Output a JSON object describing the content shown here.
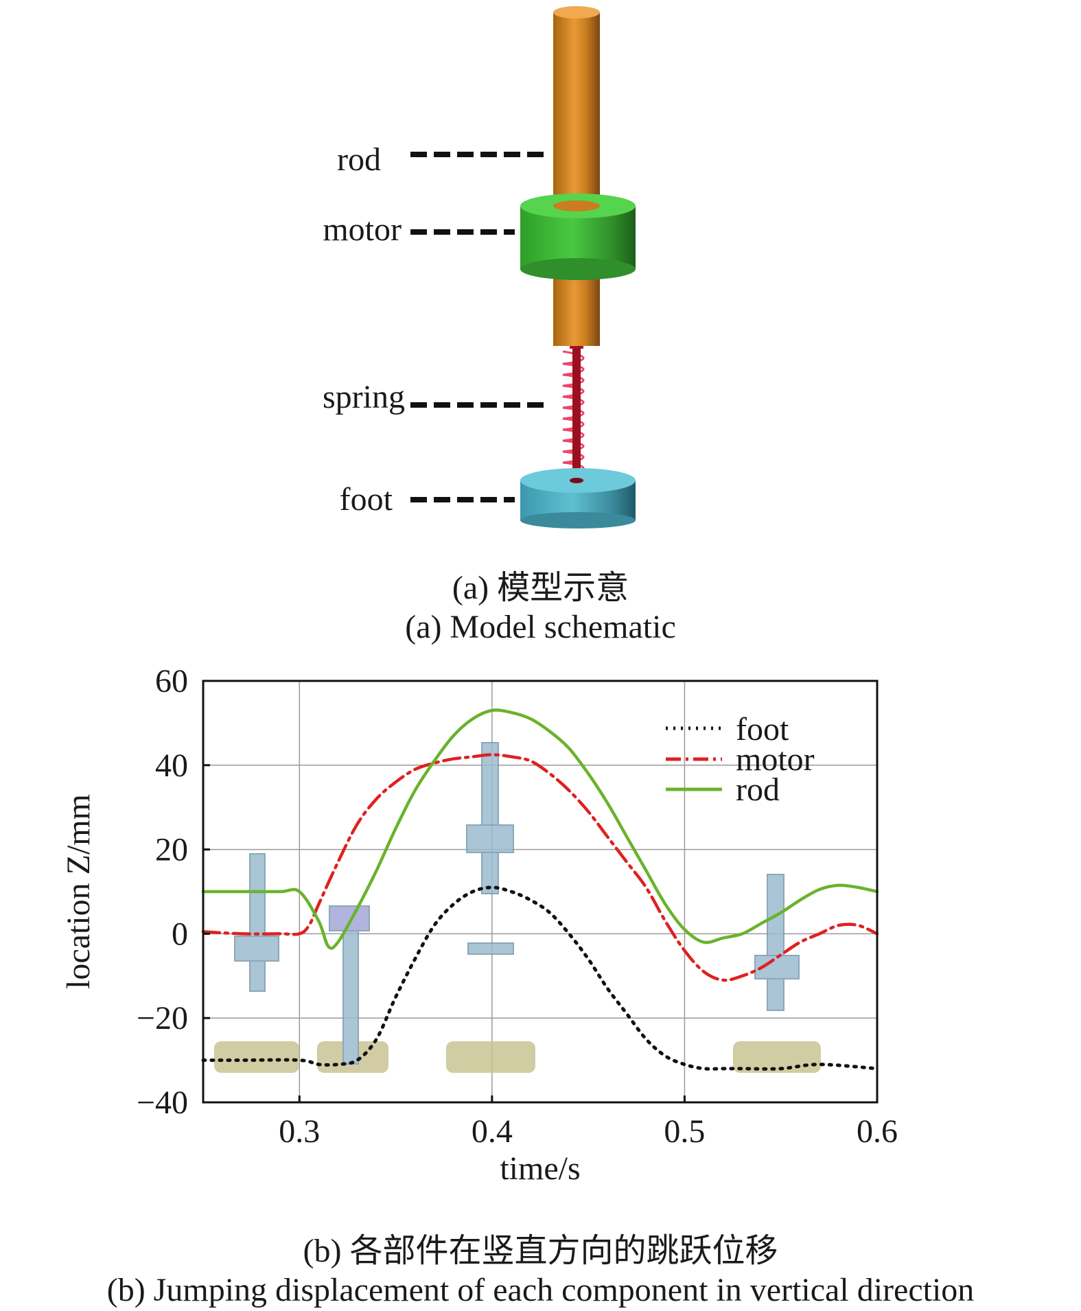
{
  "schematic": {
    "labels": {
      "rod": "rod",
      "motor": "motor",
      "spring": "spring",
      "foot": "foot"
    },
    "colors": {
      "rod": "#d98c28",
      "motor": "#3fbf3a",
      "spring": "#d8202e",
      "foot": "#55b3c6"
    }
  },
  "captions": {
    "a_cn": "(a) 模型示意",
    "a_en": "(a) Model schematic",
    "b_cn": "(b) 各部件在竖直方向的跳跃位移",
    "b_en": "(b) Jumping displacement of each component in vertical direction"
  },
  "chart_data": {
    "type": "line",
    "xlabel": "time/s",
    "ylabel": "location Z/mm",
    "xlim": [
      0.25,
      0.6
    ],
    "ylim": [
      -40,
      60
    ],
    "xticks": [
      0.3,
      0.4,
      0.5,
      0.6
    ],
    "xtick_labels": [
      "0.3",
      "0.4",
      "0.5",
      "0.6"
    ],
    "yticks": [
      -40,
      -20,
      0,
      20,
      40,
      60
    ],
    "ytick_labels": [
      "−40",
      "−20",
      "0",
      "20",
      "40",
      "60"
    ],
    "grid": true,
    "legend_position": "top-right",
    "series": [
      {
        "name": "foot",
        "style": "dotted",
        "color": "#111111",
        "x": [
          0.25,
          0.27,
          0.3,
          0.31,
          0.32,
          0.33,
          0.34,
          0.35,
          0.36,
          0.37,
          0.38,
          0.39,
          0.4,
          0.41,
          0.42,
          0.43,
          0.44,
          0.45,
          0.46,
          0.47,
          0.48,
          0.49,
          0.5,
          0.51,
          0.52,
          0.53,
          0.55,
          0.57,
          0.6
        ],
        "y": [
          -30,
          -30,
          -30,
          -31,
          -31,
          -30,
          -25,
          -15,
          -6,
          2,
          7,
          10,
          11,
          10,
          8,
          5,
          0,
          -6,
          -13,
          -19,
          -25,
          -29,
          -31,
          -32,
          -32,
          -32,
          -32,
          -31,
          -32
        ]
      },
      {
        "name": "motor",
        "style": "dash-dot",
        "color": "#e02020",
        "x": [
          0.25,
          0.27,
          0.29,
          0.3,
          0.305,
          0.31,
          0.32,
          0.33,
          0.34,
          0.35,
          0.36,
          0.37,
          0.38,
          0.39,
          0.4,
          0.41,
          0.42,
          0.43,
          0.44,
          0.45,
          0.46,
          0.47,
          0.48,
          0.49,
          0.5,
          0.51,
          0.52,
          0.53,
          0.54,
          0.55,
          0.56,
          0.57,
          0.58,
          0.59,
          0.6
        ],
        "y": [
          0.5,
          0,
          0,
          0,
          2,
          7,
          17,
          26,
          32,
          36,
          39,
          40.5,
          41.5,
          42,
          42.5,
          42,
          41,
          38,
          34,
          29,
          23,
          17,
          11,
          3,
          -4,
          -9,
          -11,
          -10,
          -8,
          -5,
          -2,
          0,
          2,
          2,
          0
        ]
      },
      {
        "name": "rod",
        "style": "solid",
        "color": "#69b32c",
        "x": [
          0.25,
          0.27,
          0.29,
          0.3,
          0.31,
          0.315,
          0.32,
          0.33,
          0.34,
          0.35,
          0.36,
          0.37,
          0.38,
          0.39,
          0.4,
          0.41,
          0.42,
          0.43,
          0.44,
          0.45,
          0.46,
          0.47,
          0.48,
          0.49,
          0.5,
          0.51,
          0.52,
          0.53,
          0.54,
          0.55,
          0.56,
          0.57,
          0.58,
          0.59,
          0.6
        ],
        "y": [
          10,
          10,
          10,
          10,
          3,
          -3,
          -2,
          6,
          15,
          25,
          34,
          41,
          47,
          51,
          53,
          52.5,
          51,
          48,
          44,
          38,
          31,
          23,
          15,
          7,
          1,
          -2,
          -1,
          0,
          2.5,
          5,
          8,
          10.5,
          11.5,
          11,
          10
        ]
      }
    ]
  }
}
